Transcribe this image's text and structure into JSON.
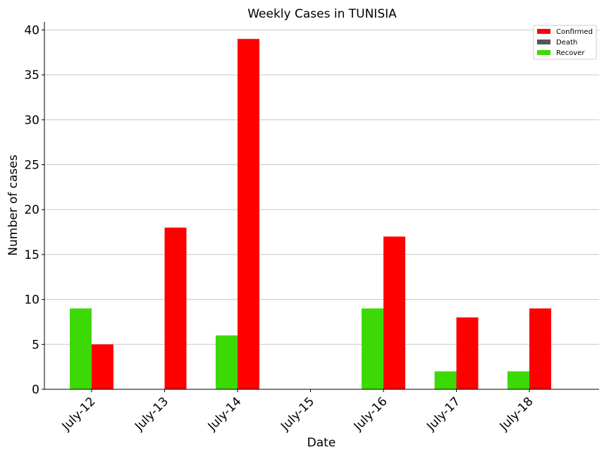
{
  "chart_data": {
    "type": "bar",
    "title": "Weekly Cases in TUNISIA",
    "xlabel": "Date",
    "ylabel": "Number of cases",
    "categories": [
      "July-12",
      "July-13",
      "July-14",
      "July-15",
      "July-16",
      "July-17",
      "July-18"
    ],
    "series": [
      {
        "name": "Confirmed",
        "color": "#ff0000",
        "values": [
          5,
          18,
          39,
          0,
          17,
          8,
          9
        ]
      },
      {
        "name": "Death",
        "color": "#555555",
        "values": [
          0,
          0,
          0,
          0,
          0,
          0,
          0
        ]
      },
      {
        "name": "Recover",
        "color": "#3dd907",
        "values": [
          9,
          0,
          6,
          0,
          9,
          2,
          2
        ]
      }
    ],
    "ylim": [
      0,
      40.9
    ],
    "yticks": [
      0,
      5,
      10,
      15,
      20,
      25,
      30,
      35,
      40
    ],
    "grid": "horizontal",
    "legend_position": "top-right"
  }
}
